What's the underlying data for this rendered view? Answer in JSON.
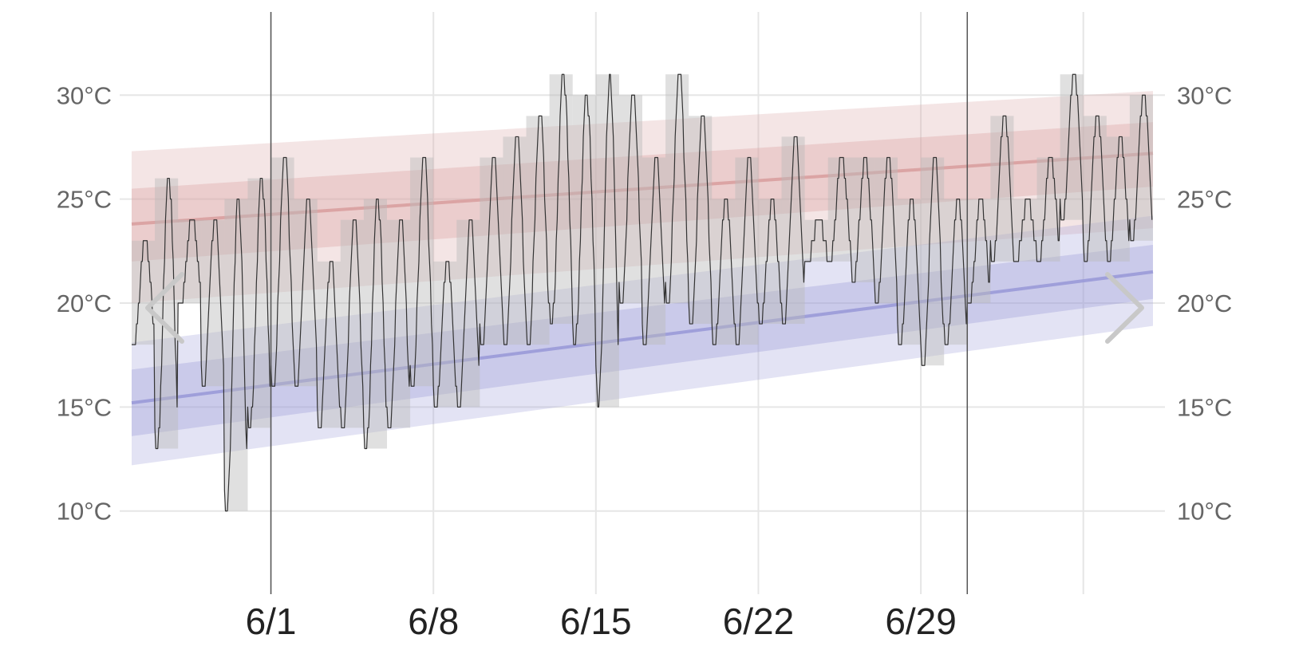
{
  "chart_data": {
    "type": "line",
    "x_axis": {
      "tick_labels": [
        "6/1",
        "6/8",
        "6/15",
        "6/22",
        "6/29"
      ],
      "tick_days": [
        6,
        13,
        20,
        27,
        34
      ],
      "extra_gridline_days": [
        41
      ],
      "marker_days": [
        6,
        36
      ],
      "range_days": [
        0,
        44
      ]
    },
    "y_axis": {
      "unit": "°C",
      "tick_labels": [
        "10°C",
        "15°C",
        "20°C",
        "25°C",
        "30°C"
      ],
      "tick_values": [
        10,
        15,
        20,
        25,
        30
      ],
      "range": [
        6,
        34
      ]
    },
    "normal_high": {
      "color": "#d9a0a0",
      "days": [
        0,
        44
      ],
      "mean": [
        23.8,
        27.2
      ],
      "band_inner_low": [
        22.0,
        25.6
      ],
      "band_inner_high": [
        25.5,
        28.7
      ],
      "band_outer_low": [
        20.0,
        23.6
      ],
      "band_outer_high": [
        27.3,
        30.2
      ]
    },
    "normal_low": {
      "color": "#9a9ad8",
      "days": [
        0,
        44
      ],
      "mean": [
        15.2,
        21.5
      ],
      "band_inner_low": [
        13.6,
        20.2
      ],
      "band_inner_high": [
        16.8,
        22.8
      ],
      "band_outer_low": [
        12.2,
        18.9
      ],
      "band_outer_high": [
        18.1,
        24.2
      ]
    },
    "daily_range": {
      "color": "#bbbbbb",
      "days": [
        0,
        1,
        2,
        3,
        4,
        5,
        6,
        7,
        8,
        9,
        10,
        11,
        12,
        13,
        14,
        15,
        16,
        17,
        18,
        19,
        20,
        21,
        22,
        23,
        24,
        25,
        26,
        27,
        28,
        29,
        30,
        31,
        32,
        33,
        34,
        35,
        36,
        37,
        38,
        39,
        40,
        41,
        42,
        43
      ],
      "low": [
        18,
        13,
        20,
        16,
        10,
        14,
        16,
        16,
        14,
        14,
        13,
        14,
        16,
        15,
        15,
        18,
        18,
        18,
        19,
        18,
        15,
        20,
        18,
        20,
        19,
        18,
        18,
        19,
        19,
        22,
        22,
        21,
        20,
        18,
        17,
        18,
        20,
        22,
        22,
        22,
        24,
        22,
        22,
        23
      ],
      "high": [
        23,
        26,
        24,
        24,
        25,
        26,
        27,
        25,
        22,
        24,
        25,
        24,
        27,
        22,
        24,
        27,
        28,
        29,
        31,
        30,
        31,
        30,
        27,
        31,
        29,
        25,
        27,
        25,
        28,
        24,
        27,
        27,
        27,
        25,
        27,
        25,
        25,
        29,
        25,
        27,
        31,
        29,
        28,
        30
      ]
    },
    "hourly_temp": {
      "color": "#333333"
    },
    "nav": {
      "prev_label": "‹",
      "next_label": "›"
    }
  }
}
